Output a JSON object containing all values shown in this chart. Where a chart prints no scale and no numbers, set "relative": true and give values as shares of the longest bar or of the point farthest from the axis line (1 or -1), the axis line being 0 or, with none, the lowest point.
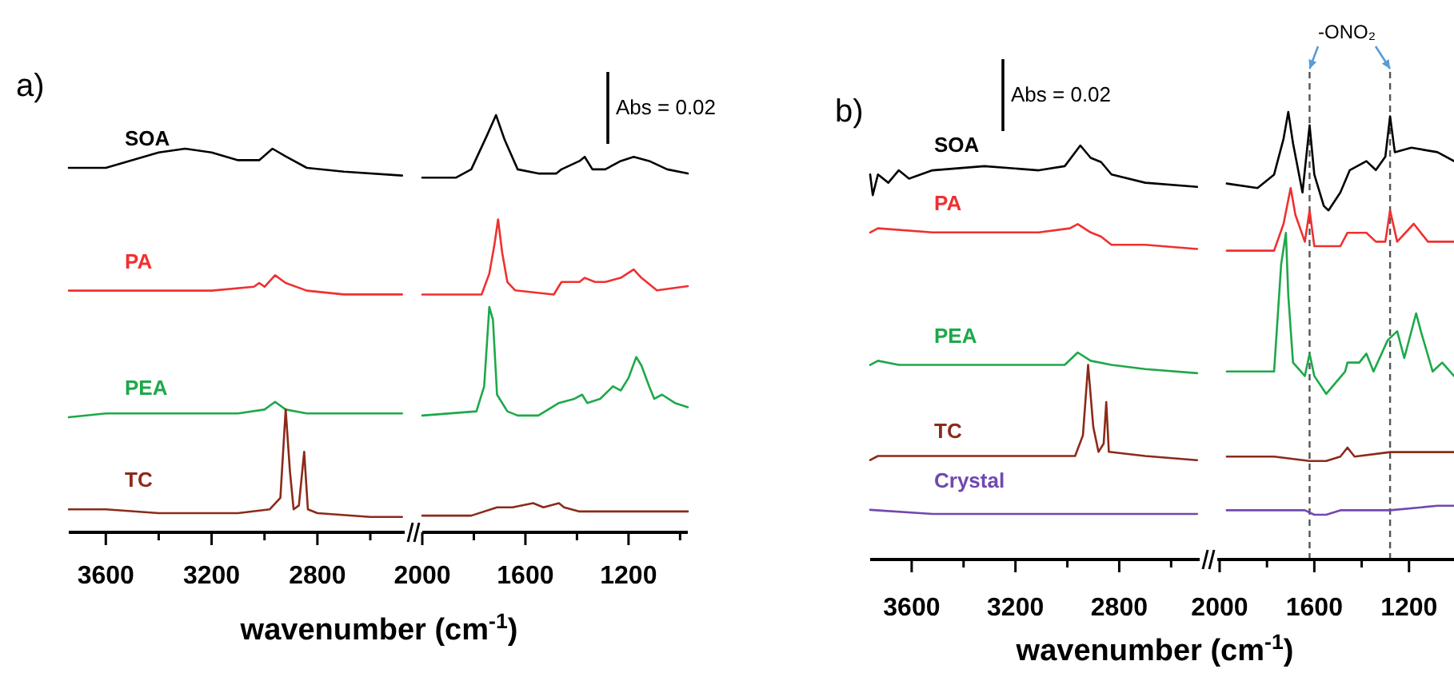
{
  "chart_data": [
    {
      "type": "line",
      "title": "a)",
      "xlabel": "wavenumber (cm$^{-1}$)",
      "relative": true,
      "xlim": [
        3740,
        2470
      ],
      "xticks": [
        3600,
        {
          "value": 3400,
          "label": null
        },
        3200,
        {
          "value": 3000,
          "label": null
        },
        2800,
        {
          "value": 2600,
          "label": null
        }
      ],
      "series": [
        {
          "name": "SOA",
          "color": "#000000",
          "x": [
            3740,
            3600,
            3400,
            3300,
            3200,
            3100,
            3020,
            2970,
            2920,
            2840,
            2700,
            2480
          ],
          "values": [
            0.95,
            0.95,
            0.99,
            1,
            0.99,
            0.97,
            0.97,
            1,
            0.98,
            0.95,
            0.94,
            0.93
          ]
        },
        {
          "name": "PA",
          "color": "#f03030",
          "x": [
            3740,
            3600,
            3400,
            3200,
            3040,
            3020,
            3000,
            2960,
            2920,
            2840,
            2700,
            2480
          ],
          "values": [
            0.63,
            0.63,
            0.63,
            0.63,
            0.64,
            0.65,
            0.64,
            0.67,
            0.65,
            0.63,
            0.62,
            0.62
          ]
        },
        {
          "name": "PEA",
          "color": "#1ea84a",
          "x": [
            3740,
            3600,
            3400,
            3100,
            3000,
            2960,
            2920,
            2840,
            2700,
            2480
          ],
          "values": [
            0.3,
            0.31,
            0.31,
            0.31,
            0.32,
            0.34,
            0.32,
            0.31,
            0.31,
            0.31
          ]
        },
        {
          "name": "TC",
          "color": "#8b2a1a",
          "x": [
            3740,
            3600,
            3400,
            3100,
            2980,
            2940,
            2920,
            2904,
            2890,
            2870,
            2850,
            2836,
            2800,
            2600,
            2480
          ],
          "values": [
            0.06,
            0.06,
            0.05,
            0.05,
            0.06,
            0.09,
            0.32,
            0.16,
            0.06,
            0.07,
            0.21,
            0.06,
            0.05,
            0.04,
            0.04
          ]
        }
      ]
    },
    {
      "type": "line",
      "relative": true,
      "xlim": [
        2000,
        970
      ],
      "xticks": [
        2000,
        {
          "value": 1800,
          "label": null
        },
        1600,
        {
          "value": 1400,
          "label": null
        },
        1200,
        {
          "value": 1000,
          "label": null
        }
      ],
      "annotations": [
        "Abs = 0.02"
      ],
      "series": [
        {
          "color": "#000000",
          "x": [
            2000,
            1870,
            1810,
            1750,
            1714,
            1680,
            1630,
            1550,
            1480,
            1460,
            1390,
            1370,
            1340,
            1290,
            1230,
            1180,
            1120,
            1050,
            970
          ],
          "values": [
            0.85,
            0.85,
            0.87,
            0.95,
            1,
            0.94,
            0.87,
            0.86,
            0.86,
            0.87,
            0.89,
            0.9,
            0.87,
            0.87,
            0.89,
            0.9,
            0.89,
            0.87,
            0.86
          ]
        },
        {
          "color": "#f03030",
          "x": [
            2000,
            1770,
            1740,
            1720,
            1706,
            1690,
            1670,
            1640,
            1490,
            1460,
            1390,
            1370,
            1330,
            1290,
            1230,
            1180,
            1150,
            1090,
            970
          ],
          "values": [
            0.57,
            0.57,
            0.62,
            0.69,
            0.75,
            0.67,
            0.6,
            0.58,
            0.57,
            0.6,
            0.6,
            0.61,
            0.6,
            0.6,
            0.61,
            0.63,
            0.61,
            0.58,
            0.59
          ]
        },
        {
          "color": "#1ea84a",
          "x": [
            2000,
            1790,
            1760,
            1740,
            1726,
            1710,
            1670,
            1630,
            1550,
            1470,
            1410,
            1380,
            1360,
            1310,
            1260,
            1230,
            1200,
            1170,
            1150,
            1120,
            1100,
            1070,
            1020,
            970
          ],
          "values": [
            0.28,
            0.29,
            0.35,
            0.54,
            0.51,
            0.33,
            0.29,
            0.28,
            0.28,
            0.31,
            0.32,
            0.33,
            0.31,
            0.32,
            0.35,
            0.34,
            0.37,
            0.42,
            0.4,
            0.35,
            0.32,
            0.33,
            0.31,
            0.3
          ]
        },
        {
          "color": "#8b2a1a",
          "x": [
            2000,
            1810,
            1710,
            1650,
            1570,
            1530,
            1470,
            1450,
            1390,
            1250,
            970
          ],
          "values": [
            0.04,
            0.04,
            0.06,
            0.06,
            0.07,
            0.06,
            0.07,
            0.06,
            0.05,
            0.05,
            0.05
          ]
        }
      ]
    },
    {
      "type": "line",
      "title": "b)",
      "xlabel": "wavenumber (cm$^{-1}$)",
      "relative": true,
      "xlim": [
        3760,
        2490
      ],
      "xticks": [
        3600,
        {
          "value": 3400,
          "label": null
        },
        3200,
        {
          "value": 3000,
          "label": null
        },
        2800,
        {
          "value": 2600,
          "label": null
        }
      ],
      "annotations": [
        "Abs = 0.02"
      ],
      "series": [
        {
          "name": "SOA",
          "color": "#000000",
          "x": [
            3760,
            3750,
            3730,
            3690,
            3650,
            3610,
            3520,
            3320,
            3110,
            3010,
            2950,
            2910,
            2870,
            2830,
            2700,
            2500
          ],
          "values": [
            0.93,
            0.88,
            0.93,
            0.91,
            0.94,
            0.92,
            0.94,
            0.95,
            0.94,
            0.95,
            1,
            0.97,
            0.96,
            0.93,
            0.91,
            0.9
          ]
        },
        {
          "name": "PA",
          "color": "#f03030",
          "x": [
            3760,
            3730,
            3520,
            3320,
            3110,
            2990,
            2960,
            2910,
            2870,
            2830,
            2700,
            2500
          ],
          "values": [
            0.79,
            0.8,
            0.79,
            0.79,
            0.79,
            0.8,
            0.81,
            0.79,
            0.78,
            0.76,
            0.76,
            0.75
          ]
        },
        {
          "name": "PEA",
          "color": "#1ea84a",
          "x": [
            3760,
            3730,
            3650,
            3520,
            3320,
            3110,
            3010,
            2960,
            2910,
            2830,
            2700,
            2500
          ],
          "values": [
            0.47,
            0.48,
            0.47,
            0.47,
            0.47,
            0.47,
            0.47,
            0.5,
            0.48,
            0.47,
            0.46,
            0.45
          ]
        },
        {
          "name": "TC",
          "color": "#8b2a1a",
          "x": [
            3760,
            3730,
            3520,
            3320,
            3110,
            2970,
            2940,
            2920,
            2900,
            2880,
            2860,
            2850,
            2840,
            2700,
            2500
          ],
          "values": [
            0.24,
            0.25,
            0.25,
            0.25,
            0.25,
            0.25,
            0.3,
            0.47,
            0.32,
            0.26,
            0.28,
            0.38,
            0.26,
            0.25,
            0.24
          ]
        },
        {
          "name": "Crystal",
          "color": "#7048b0",
          "x": [
            3760,
            3520,
            3320,
            3010,
            2700,
            2500
          ],
          "values": [
            0.12,
            0.11,
            0.11,
            0.11,
            0.11,
            0.11
          ]
        }
      ]
    },
    {
      "type": "line",
      "relative": true,
      "xlim": [
        2010,
        1010
      ],
      "xticks": [
        2000,
        {
          "value": 1800,
          "label": null
        },
        1600,
        {
          "value": 1400,
          "label": null
        },
        1200
      ],
      "annotations": [
        "-ONO₂"
      ],
      "ref_lines": [
        {
          "axis": "x",
          "value": 1620,
          "line_style": "dashed",
          "color": "#555555"
        },
        {
          "axis": "x",
          "value": 1280,
          "line_style": "dashed",
          "color": "#555555"
        }
      ],
      "series": [
        {
          "color": "#000000",
          "x": [
            1970,
            1840,
            1770,
            1730,
            1710,
            1690,
            1650,
            1620,
            1600,
            1560,
            1540,
            1490,
            1450,
            1380,
            1340,
            1300,
            1280,
            1260,
            1190,
            1080,
            1010
          ],
          "values": [
            0.84,
            0.83,
            0.86,
            0.94,
            1,
            0.93,
            0.82,
            0.97,
            0.86,
            0.79,
            0.78,
            0.82,
            0.87,
            0.89,
            0.87,
            0.9,
            0.99,
            0.91,
            0.92,
            0.91,
            0.89
          ]
        },
        {
          "color": "#f03030",
          "x": [
            1970,
            1770,
            1730,
            1700,
            1680,
            1640,
            1620,
            1600,
            1490,
            1460,
            1380,
            1340,
            1300,
            1280,
            1250,
            1180,
            1120,
            1010
          ],
          "values": [
            0.69,
            0.69,
            0.75,
            0.83,
            0.77,
            0.71,
            0.78,
            0.7,
            0.7,
            0.73,
            0.73,
            0.71,
            0.71,
            0.78,
            0.71,
            0.75,
            0.71,
            0.71
          ]
        },
        {
          "color": "#1ea84a",
          "x": [
            1970,
            1770,
            1740,
            1720,
            1710,
            1690,
            1640,
            1620,
            1600,
            1550,
            1470,
            1460,
            1410,
            1380,
            1350,
            1290,
            1250,
            1220,
            1170,
            1150,
            1100,
            1060,
            1010
          ],
          "values": [
            0.42,
            0.42,
            0.66,
            0.73,
            0.59,
            0.44,
            0.41,
            0.46,
            0.41,
            0.37,
            0.42,
            0.44,
            0.44,
            0.46,
            0.42,
            0.49,
            0.51,
            0.45,
            0.55,
            0.51,
            0.42,
            0.44,
            0.41
          ]
        },
        {
          "color": "#8b2a1a",
          "x": [
            1970,
            1770,
            1620,
            1550,
            1490,
            1460,
            1430,
            1280,
            1010
          ],
          "values": [
            0.23,
            0.23,
            0.22,
            0.22,
            0.23,
            0.25,
            0.23,
            0.24,
            0.24
          ]
        },
        {
          "color": "#7048b0",
          "x": [
            1970,
            1640,
            1600,
            1550,
            1490,
            1280,
            1080,
            1010
          ],
          "values": [
            0.11,
            0.11,
            0.1,
            0.1,
            0.11,
            0.11,
            0.12,
            0.12
          ]
        }
      ]
    }
  ]
}
